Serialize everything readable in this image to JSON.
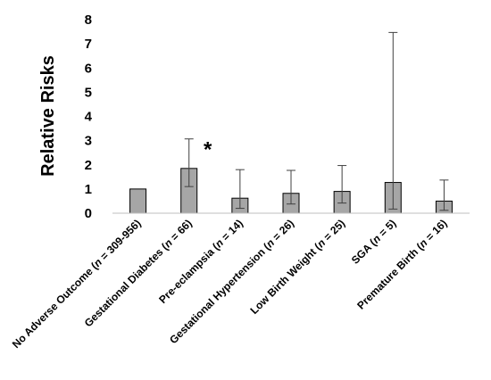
{
  "chart_data": {
    "type": "bar",
    "ylabel": "Relative Risks",
    "ylim": [
      0,
      8
    ],
    "yticks": [
      "0",
      "1",
      "2",
      "3",
      "4",
      "5",
      "6",
      "7",
      "8"
    ],
    "grid": false,
    "legend": "none",
    "bar_color": "#a6a6a6",
    "categories": [
      {
        "pre": "No Adverse Outcome (",
        "n": "n",
        "post": " = 309-956)"
      },
      {
        "pre": "Gestational Diabetes (",
        "n": "n",
        "post": " = 66)"
      },
      {
        "pre": "Pre-eclampsia (",
        "n": "n",
        "post": " = 14)"
      },
      {
        "pre": "Gestational Hypertension (",
        "n": "n",
        "post": " = 26)"
      },
      {
        "pre": "Low Birth Weight (",
        "n": "n",
        "post": " = 25)"
      },
      {
        "pre": "SGA (",
        "n": "n",
        "post": " = 5)"
      },
      {
        "pre": "Premature Birth (",
        "n": "n",
        "post": " = 16)"
      }
    ],
    "values": [
      1.0,
      1.85,
      0.62,
      0.82,
      0.9,
      1.27,
      0.5
    ],
    "err_low": [
      1.0,
      1.1,
      0.2,
      0.38,
      0.42,
      0.17,
      0.12
    ],
    "err_high": [
      1.0,
      3.07,
      1.8,
      1.77,
      1.97,
      7.47,
      1.37
    ],
    "annotations": [
      {
        "index": 1,
        "text": "*"
      }
    ]
  }
}
